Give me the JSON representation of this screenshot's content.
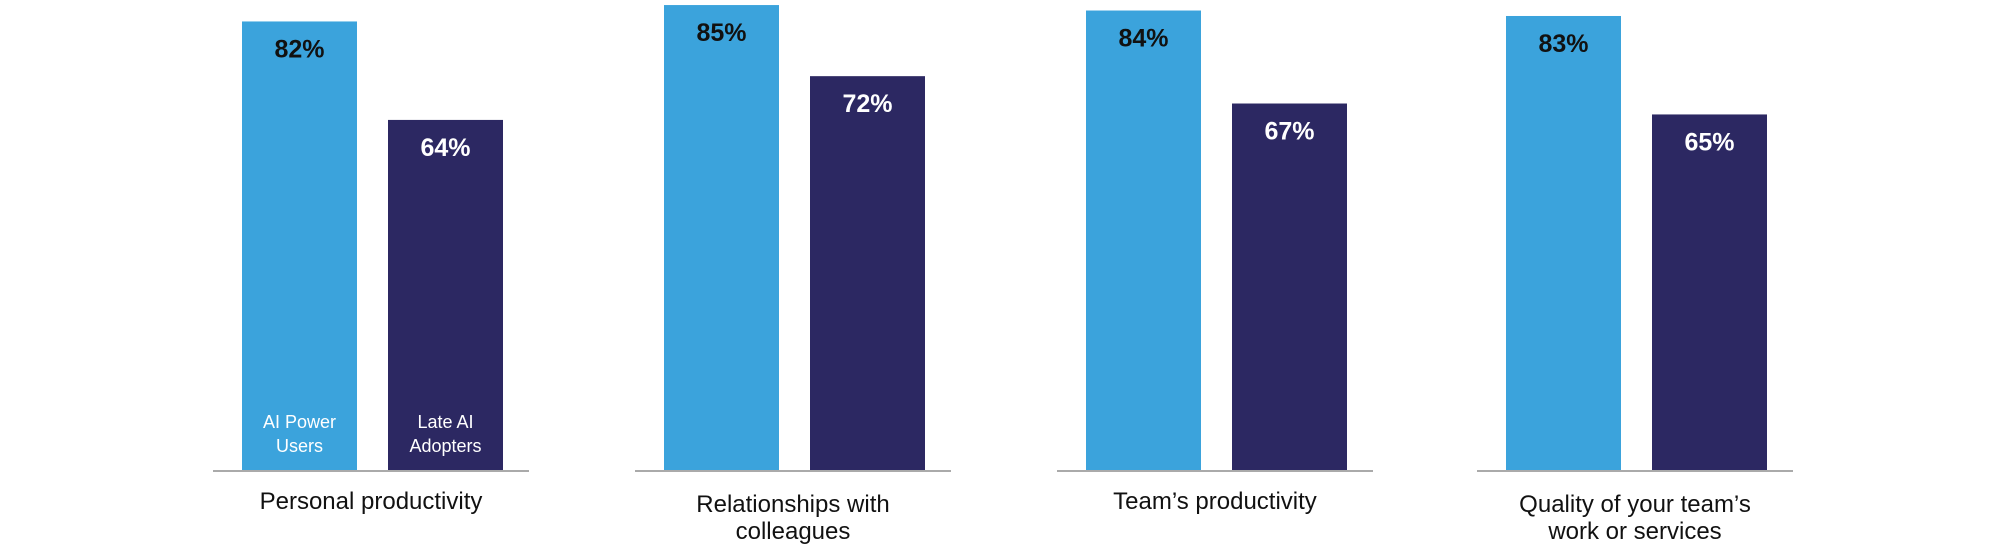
{
  "chart_data": {
    "type": "bar",
    "categories": [
      "Personal productivity",
      "Relationships with colleagues",
      "Team’s productivity",
      "Quality of your team’s work or services"
    ],
    "category_lines": [
      [
        "Personal productivity"
      ],
      [
        "Relationships with",
        "colleagues"
      ],
      [
        "Team’s productivity"
      ],
      [
        "Quality of your team’s",
        "work or services"
      ]
    ],
    "series": [
      {
        "name": "AI Power Users",
        "name_lines": [
          "AI Power",
          "Users"
        ],
        "values": [
          82,
          85,
          84,
          83
        ],
        "labels": [
          "82%",
          "85%",
          "84%",
          "83%"
        ],
        "color": "#3BA3DC",
        "label_color": "#111111"
      },
      {
        "name": "Late AI Adopters",
        "name_lines": [
          "Late AI",
          "Adopters"
        ],
        "values": [
          64,
          72,
          67,
          65
        ],
        "labels": [
          "64%",
          "72%",
          "67%",
          "65%"
        ],
        "color": "#2C2862",
        "label_color": "#FFFFFF"
      }
    ],
    "unit": "%",
    "ylim": [
      0,
      100
    ],
    "grid": false,
    "legend": "inside-first-group-bars",
    "baseline_color": "#AAAAAA"
  }
}
